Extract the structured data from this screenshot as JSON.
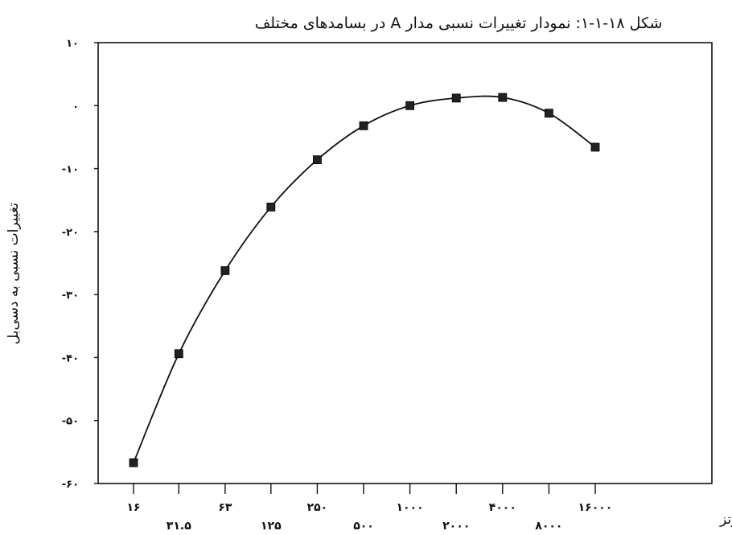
{
  "chart_data": {
    "type": "line",
    "title": "شکل ۱۸-۱-۱: نمودار تغییرات نسبی مدار A در بسامدهای مختلف",
    "xlabel": "بسامد به هرتز",
    "ylabel": "تغییرات نسبی به دسی‌بل",
    "x": [
      16,
      31.5,
      63,
      125,
      250,
      500,
      1000,
      2000,
      4000,
      8000,
      16000
    ],
    "x_tick_labels": [
      "۱۶",
      "۳۱.۵",
      "۶۳",
      "۱۲۵",
      "۲۵۰",
      "۵۰۰",
      "۱۰۰۰",
      "۲۰۰۰",
      "۴۰۰۰",
      "۸۰۰۰",
      "۱۶۰۰۰"
    ],
    "series": [
      {
        "values": [
          -56.7,
          -39.4,
          -26.2,
          -16.1,
          -8.6,
          -3.2,
          0,
          1.2,
          1.3,
          -1.2,
          -6.6
        ]
      }
    ],
    "ylim": [
      -60,
      10
    ],
    "y_ticks": [
      10,
      0,
      -10,
      -20,
      -30,
      -40,
      -50,
      -60
    ],
    "y_tick_labels": [
      "۱۰",
      "۰",
      "-۱۰",
      "-۲۰",
      "-۳۰",
      "-۴۰",
      "-۵۰",
      "-۶۰"
    ],
    "x_scale": "log",
    "grid": false,
    "legend": "none",
    "marker": "square",
    "line_color": "#111111",
    "marker_color": "#222222"
  }
}
